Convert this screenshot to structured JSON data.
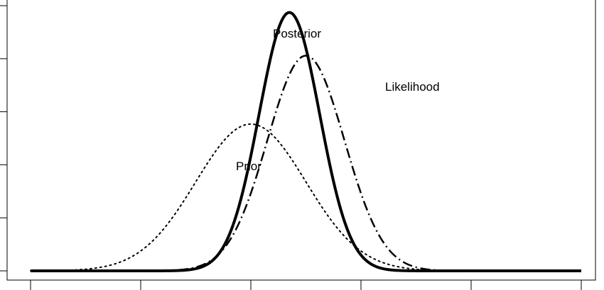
{
  "chart_data": {
    "type": "line",
    "title": "",
    "xlabel": "",
    "ylabel": "",
    "xlim": [
      -5,
      5
    ],
    "ylim": [
      0,
      1.0
    ],
    "grid": false,
    "legend": "none",
    "series": [
      {
        "name": "Prior",
        "style": "dotted",
        "mean": -1.0,
        "sd": 1.0,
        "peak": 0.564
      },
      {
        "name": "Likelihood",
        "style": "dashdot",
        "mean": 0.0,
        "sd": 0.7,
        "peak": 0.827
      },
      {
        "name": "Posterior",
        "style": "solid",
        "mean": -0.3,
        "sd": 0.55,
        "peak": 0.993
      }
    ],
    "annotations": [
      {
        "text": "Posterior",
        "series": "Posterior"
      },
      {
        "text": "Likelihood",
        "series": "Likelihood"
      },
      {
        "text": "Prior",
        "series": "Prior"
      }
    ]
  }
}
